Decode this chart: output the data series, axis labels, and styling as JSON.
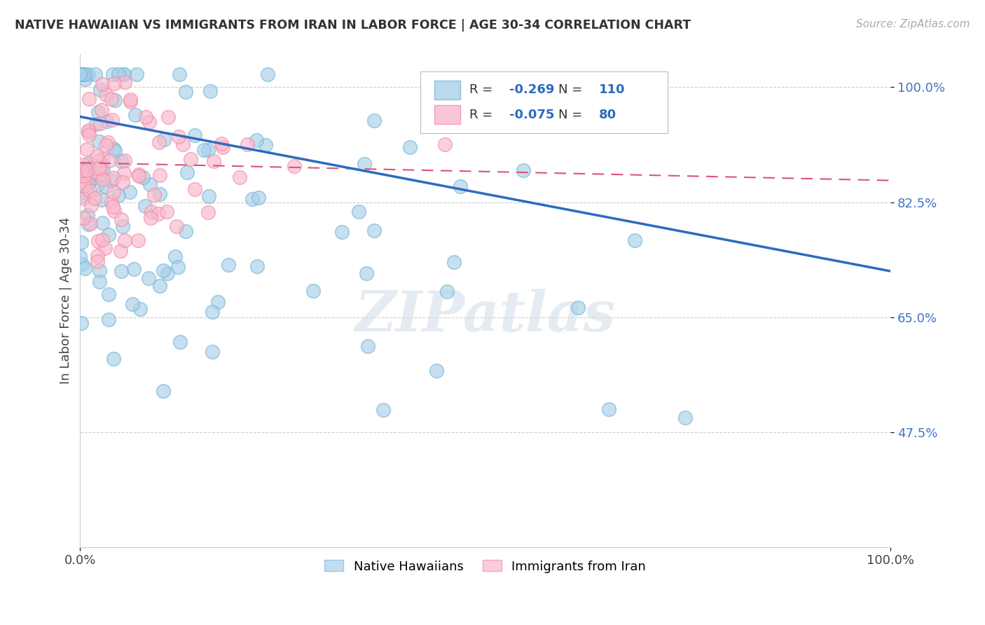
{
  "title": "NATIVE HAWAIIAN VS IMMIGRANTS FROM IRAN IN LABOR FORCE | AGE 30-34 CORRELATION CHART",
  "source": "Source: ZipAtlas.com",
  "ylabel": "In Labor Force | Age 30-34",
  "xlim": [
    0.0,
    1.0
  ],
  "ylim": [
    0.3,
    1.05
  ],
  "yticks": [
    0.475,
    0.65,
    0.825,
    1.0
  ],
  "ytick_labels": [
    "47.5%",
    "65.0%",
    "82.5%",
    "100.0%"
  ],
  "xticks": [
    0.0,
    1.0
  ],
  "xtick_labels": [
    "0.0%",
    "100.0%"
  ],
  "legend_label1": "Native Hawaiians",
  "legend_label2": "Immigrants from Iran",
  "r1": -0.269,
  "n1": 110,
  "r2": -0.075,
  "n2": 80,
  "blue_color": "#a8d0e8",
  "pink_color": "#f9b8cb",
  "blue_edge_color": "#7ab8d9",
  "pink_edge_color": "#f090aa",
  "blue_line_color": "#2d6bbf",
  "pink_line_color": "#d9547a",
  "watermark": "ZIPatlas",
  "blue_trend_start_y": 0.955,
  "blue_trend_end_y": 0.72,
  "pink_trend_start_y": 0.885,
  "pink_trend_end_y": 0.858,
  "seed_blue": 42,
  "seed_pink": 77
}
